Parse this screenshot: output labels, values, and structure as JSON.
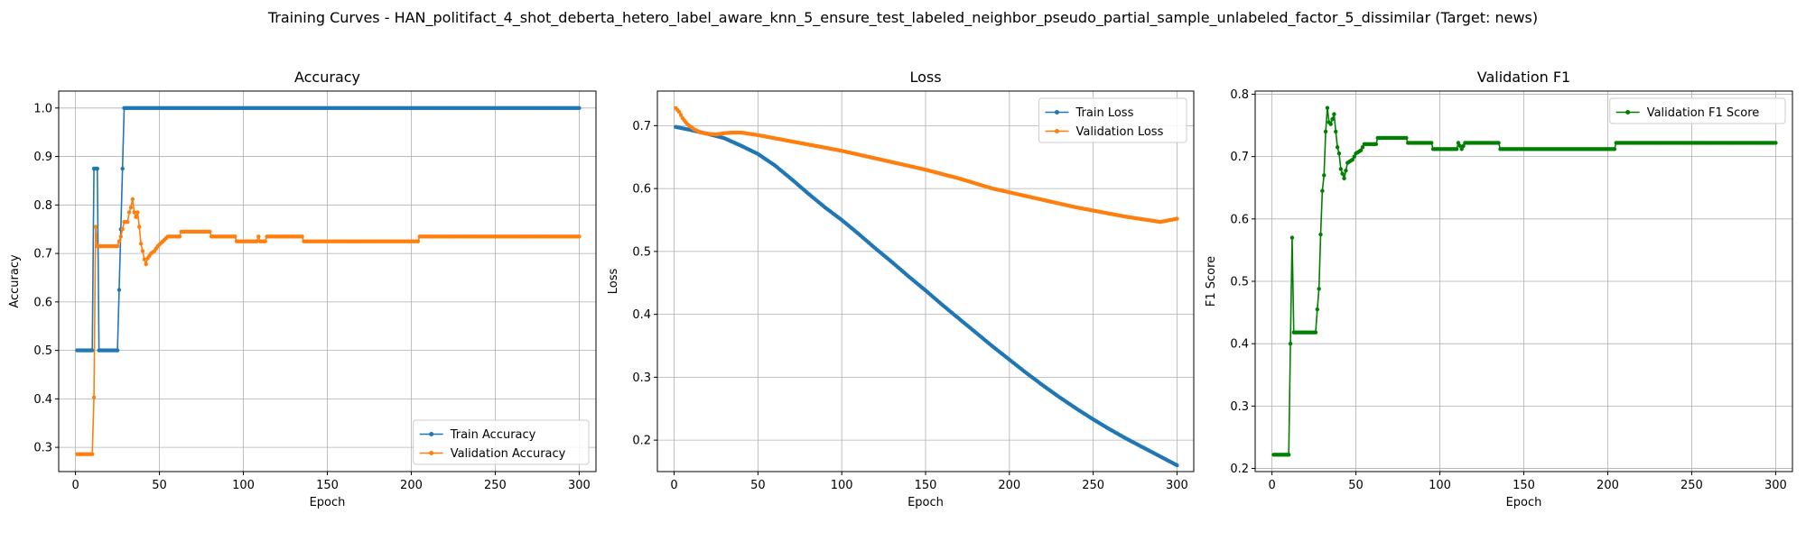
{
  "figure": {
    "title": "Training Curves - HAN_politifact_4_shot_deberta_hetero_label_aware_knn_5_ensure_test_labeled_neighbor_pseudo_partial_sample_unlabeled_factor_5_dissimilar (Target: news)"
  },
  "chart_data": [
    {
      "type": "line",
      "title": "Accuracy",
      "xlabel": "Epoch",
      "ylabel": "Accuracy",
      "xlim": [
        -10,
        310
      ],
      "ylim": [
        0.25,
        1.035
      ],
      "xticks": [
        0,
        50,
        100,
        150,
        200,
        250,
        300
      ],
      "yticks": [
        0.3,
        0.4,
        0.5,
        0.6,
        0.7,
        0.8,
        0.9,
        1.0
      ],
      "grid": true,
      "legend": "lower-right",
      "series": [
        {
          "name": "Train Accuracy",
          "color": "#1f77b4",
          "keypoints": [
            [
              1,
              0.5
            ],
            [
              10,
              0.5
            ],
            [
              11,
              0.875
            ],
            [
              13,
              0.875
            ],
            [
              14,
              0.5
            ],
            [
              25,
              0.5
            ],
            [
              26,
              0.625
            ],
            [
              27,
              0.75
            ],
            [
              28,
              0.875
            ],
            [
              29,
              1.0
            ],
            [
              300,
              1.0
            ]
          ]
        },
        {
          "name": "Validation Accuracy",
          "color": "#ff7f0e",
          "keypoints": [
            [
              1,
              0.286
            ],
            [
              10,
              0.286
            ],
            [
              11,
              0.403
            ],
            [
              12,
              0.755
            ],
            [
              13,
              0.715
            ],
            [
              25,
              0.715
            ],
            [
              27,
              0.735
            ],
            [
              29,
              0.765
            ],
            [
              31,
              0.765
            ],
            [
              32,
              0.785
            ],
            [
              33,
              0.795
            ],
            [
              34,
              0.812
            ],
            [
              35,
              0.785
            ],
            [
              36,
              0.775
            ],
            [
              37,
              0.785
            ],
            [
              38,
              0.755
            ],
            [
              39,
              0.72
            ],
            [
              40,
              0.705
            ],
            [
              41,
              0.688
            ],
            [
              42,
              0.678
            ],
            [
              43,
              0.69
            ],
            [
              45,
              0.7
            ],
            [
              47,
              0.705
            ],
            [
              49,
              0.715
            ],
            [
              52,
              0.725
            ],
            [
              55,
              0.735
            ],
            [
              62,
              0.735
            ],
            [
              63,
              0.745
            ],
            [
              80,
              0.745
            ],
            [
              81,
              0.735
            ],
            [
              95,
              0.735
            ],
            [
              96,
              0.725
            ],
            [
              108,
              0.725
            ],
            [
              109,
              0.735
            ],
            [
              110,
              0.725
            ],
            [
              113,
              0.725
            ],
            [
              114,
              0.735
            ],
            [
              135,
              0.735
            ],
            [
              136,
              0.725
            ],
            [
              204,
              0.725
            ],
            [
              205,
              0.735
            ],
            [
              300,
              0.735
            ]
          ]
        }
      ]
    },
    {
      "type": "line",
      "title": "Loss",
      "xlabel": "Epoch",
      "ylabel": "Loss",
      "xlim": [
        -10,
        310
      ],
      "ylim": [
        0.15,
        0.755
      ],
      "xticks": [
        0,
        50,
        100,
        150,
        200,
        250,
        300
      ],
      "yticks": [
        0.2,
        0.3,
        0.4,
        0.5,
        0.6,
        0.7
      ],
      "grid": true,
      "legend": "upper-right",
      "series": [
        {
          "name": "Train Loss",
          "color": "#1f77b4",
          "keypoints": [
            [
              1,
              0.698
            ],
            [
              10,
              0.693
            ],
            [
              20,
              0.687
            ],
            [
              30,
              0.68
            ],
            [
              40,
              0.668
            ],
            [
              50,
              0.655
            ],
            [
              60,
              0.637
            ],
            [
              70,
              0.615
            ],
            [
              80,
              0.592
            ],
            [
              90,
              0.57
            ],
            [
              100,
              0.55
            ],
            [
              110,
              0.528
            ],
            [
              120,
              0.505
            ],
            [
              130,
              0.483
            ],
            [
              140,
              0.46
            ],
            [
              150,
              0.438
            ],
            [
              160,
              0.415
            ],
            [
              170,
              0.393
            ],
            [
              180,
              0.371
            ],
            [
              190,
              0.349
            ],
            [
              200,
              0.328
            ],
            [
              210,
              0.307
            ],
            [
              220,
              0.287
            ],
            [
              230,
              0.268
            ],
            [
              240,
              0.25
            ],
            [
              250,
              0.233
            ],
            [
              260,
              0.217
            ],
            [
              270,
              0.202
            ],
            [
              280,
              0.188
            ],
            [
              290,
              0.174
            ],
            [
              300,
              0.16
            ]
          ]
        },
        {
          "name": "Validation Loss",
          "color": "#ff7f0e",
          "keypoints": [
            [
              1,
              0.728
            ],
            [
              3,
              0.722
            ],
            [
              5,
              0.712
            ],
            [
              8,
              0.702
            ],
            [
              12,
              0.694
            ],
            [
              16,
              0.689
            ],
            [
              20,
              0.687
            ],
            [
              25,
              0.686
            ],
            [
              30,
              0.688
            ],
            [
              35,
              0.689
            ],
            [
              40,
              0.689
            ],
            [
              50,
              0.685
            ],
            [
              60,
              0.68
            ],
            [
              70,
              0.675
            ],
            [
              80,
              0.67
            ],
            [
              90,
              0.665
            ],
            [
              100,
              0.66
            ],
            [
              110,
              0.654
            ],
            [
              120,
              0.648
            ],
            [
              130,
              0.642
            ],
            [
              140,
              0.636
            ],
            [
              150,
              0.63
            ],
            [
              160,
              0.623
            ],
            [
              170,
              0.616
            ],
            [
              180,
              0.608
            ],
            [
              190,
              0.6
            ],
            [
              200,
              0.594
            ],
            [
              210,
              0.588
            ],
            [
              220,
              0.582
            ],
            [
              230,
              0.576
            ],
            [
              240,
              0.57
            ],
            [
              250,
              0.565
            ],
            [
              260,
              0.56
            ],
            [
              270,
              0.555
            ],
            [
              280,
              0.551
            ],
            [
              290,
              0.547
            ],
            [
              300,
              0.552
            ]
          ]
        }
      ]
    },
    {
      "type": "line",
      "title": "Validation F1",
      "xlabel": "Epoch",
      "ylabel": "F1 Score",
      "xlim": [
        -10,
        310
      ],
      "ylim": [
        0.195,
        0.805
      ],
      "xticks": [
        0,
        50,
        100,
        150,
        200,
        250,
        300
      ],
      "yticks": [
        0.2,
        0.3,
        0.4,
        0.5,
        0.6,
        0.7,
        0.8
      ],
      "grid": true,
      "legend": "upper-right",
      "series": [
        {
          "name": "Validation F1 Score",
          "color": "#008000",
          "keypoints": [
            [
              1,
              0.222
            ],
            [
              10,
              0.222
            ],
            [
              11,
              0.4
            ],
            [
              12,
              0.57
            ],
            [
              13,
              0.418
            ],
            [
              26,
              0.418
            ],
            [
              27,
              0.455
            ],
            [
              28,
              0.488
            ],
            [
              29,
              0.575
            ],
            [
              30,
              0.645
            ],
            [
              31,
              0.67
            ],
            [
              32,
              0.74
            ],
            [
              33,
              0.778
            ],
            [
              34,
              0.755
            ],
            [
              35,
              0.752
            ],
            [
              36,
              0.76
            ],
            [
              37,
              0.768
            ],
            [
              38,
              0.74
            ],
            [
              39,
              0.715
            ],
            [
              40,
              0.705
            ],
            [
              41,
              0.68
            ],
            [
              43,
              0.665
            ],
            [
              45,
              0.69
            ],
            [
              48,
              0.695
            ],
            [
              50,
              0.705
            ],
            [
              53,
              0.71
            ],
            [
              55,
              0.72
            ],
            [
              62,
              0.72
            ],
            [
              63,
              0.73
            ],
            [
              80,
              0.73
            ],
            [
              81,
              0.722
            ],
            [
              95,
              0.722
            ],
            [
              96,
              0.712
            ],
            [
              110,
              0.712
            ],
            [
              111,
              0.722
            ],
            [
              113,
              0.712
            ],
            [
              115,
              0.722
            ],
            [
              135,
              0.722
            ],
            [
              136,
              0.712
            ],
            [
              204,
              0.712
            ],
            [
              205,
              0.722
            ],
            [
              300,
              0.722
            ]
          ]
        }
      ]
    }
  ]
}
